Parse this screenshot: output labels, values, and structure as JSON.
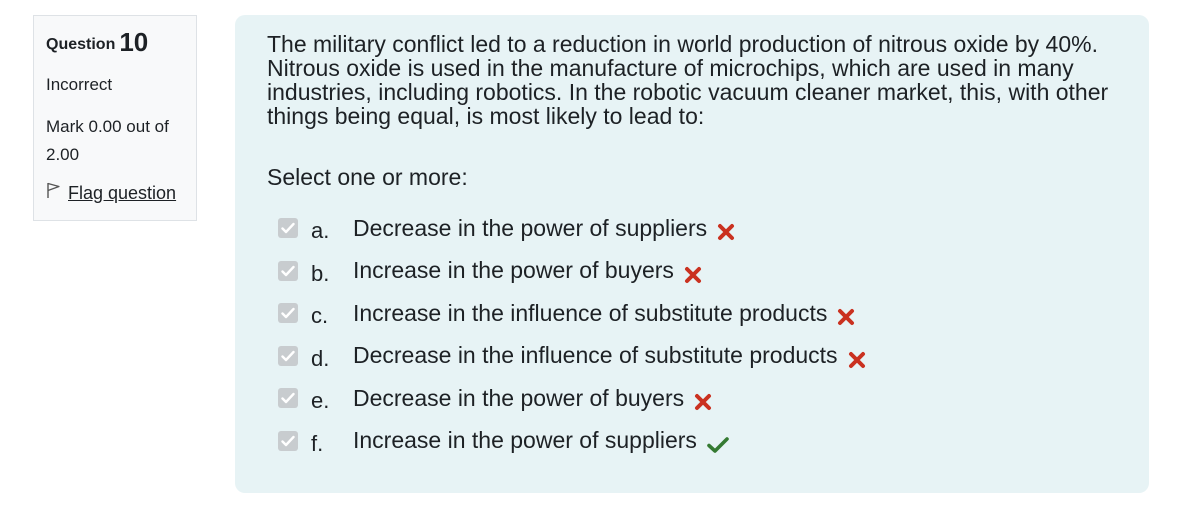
{
  "info": {
    "question_label": "Question",
    "question_number": "10",
    "state": "Incorrect",
    "grade": "Mark 0.00 out of 2.00",
    "flag_label": "Flag question"
  },
  "question": {
    "text": "The military conflict led to a reduction in world production of nitrous oxide by 40%. Nitrous oxide is used in the manufacture of microchips, which are used in many industries, including robotics. In the robotic vacuum cleaner market, this, with other things being equal, is most likely to lead to:",
    "prompt": "Select one or more:",
    "options": [
      {
        "letter": "a.",
        "text": "Decrease in the power of suppliers",
        "checked": true,
        "result": "incorrect"
      },
      {
        "letter": "b.",
        "text": "Increase in the power of buyers",
        "checked": true,
        "result": "incorrect"
      },
      {
        "letter": "c.",
        "text": "Increase in the influence of substitute products",
        "checked": true,
        "result": "incorrect"
      },
      {
        "letter": "d.",
        "text": "Decrease in the influence of substitute products",
        "checked": true,
        "result": "incorrect"
      },
      {
        "letter": "e.",
        "text": "Decrease in the power of buyers",
        "checked": true,
        "result": "incorrect"
      },
      {
        "letter": "f.",
        "text": "Increase in the power of suppliers",
        "checked": true,
        "result": "correct"
      }
    ]
  },
  "colors": {
    "incorrect": "#ca3120",
    "correct": "#357a32",
    "panel": "#e7f3f5"
  }
}
